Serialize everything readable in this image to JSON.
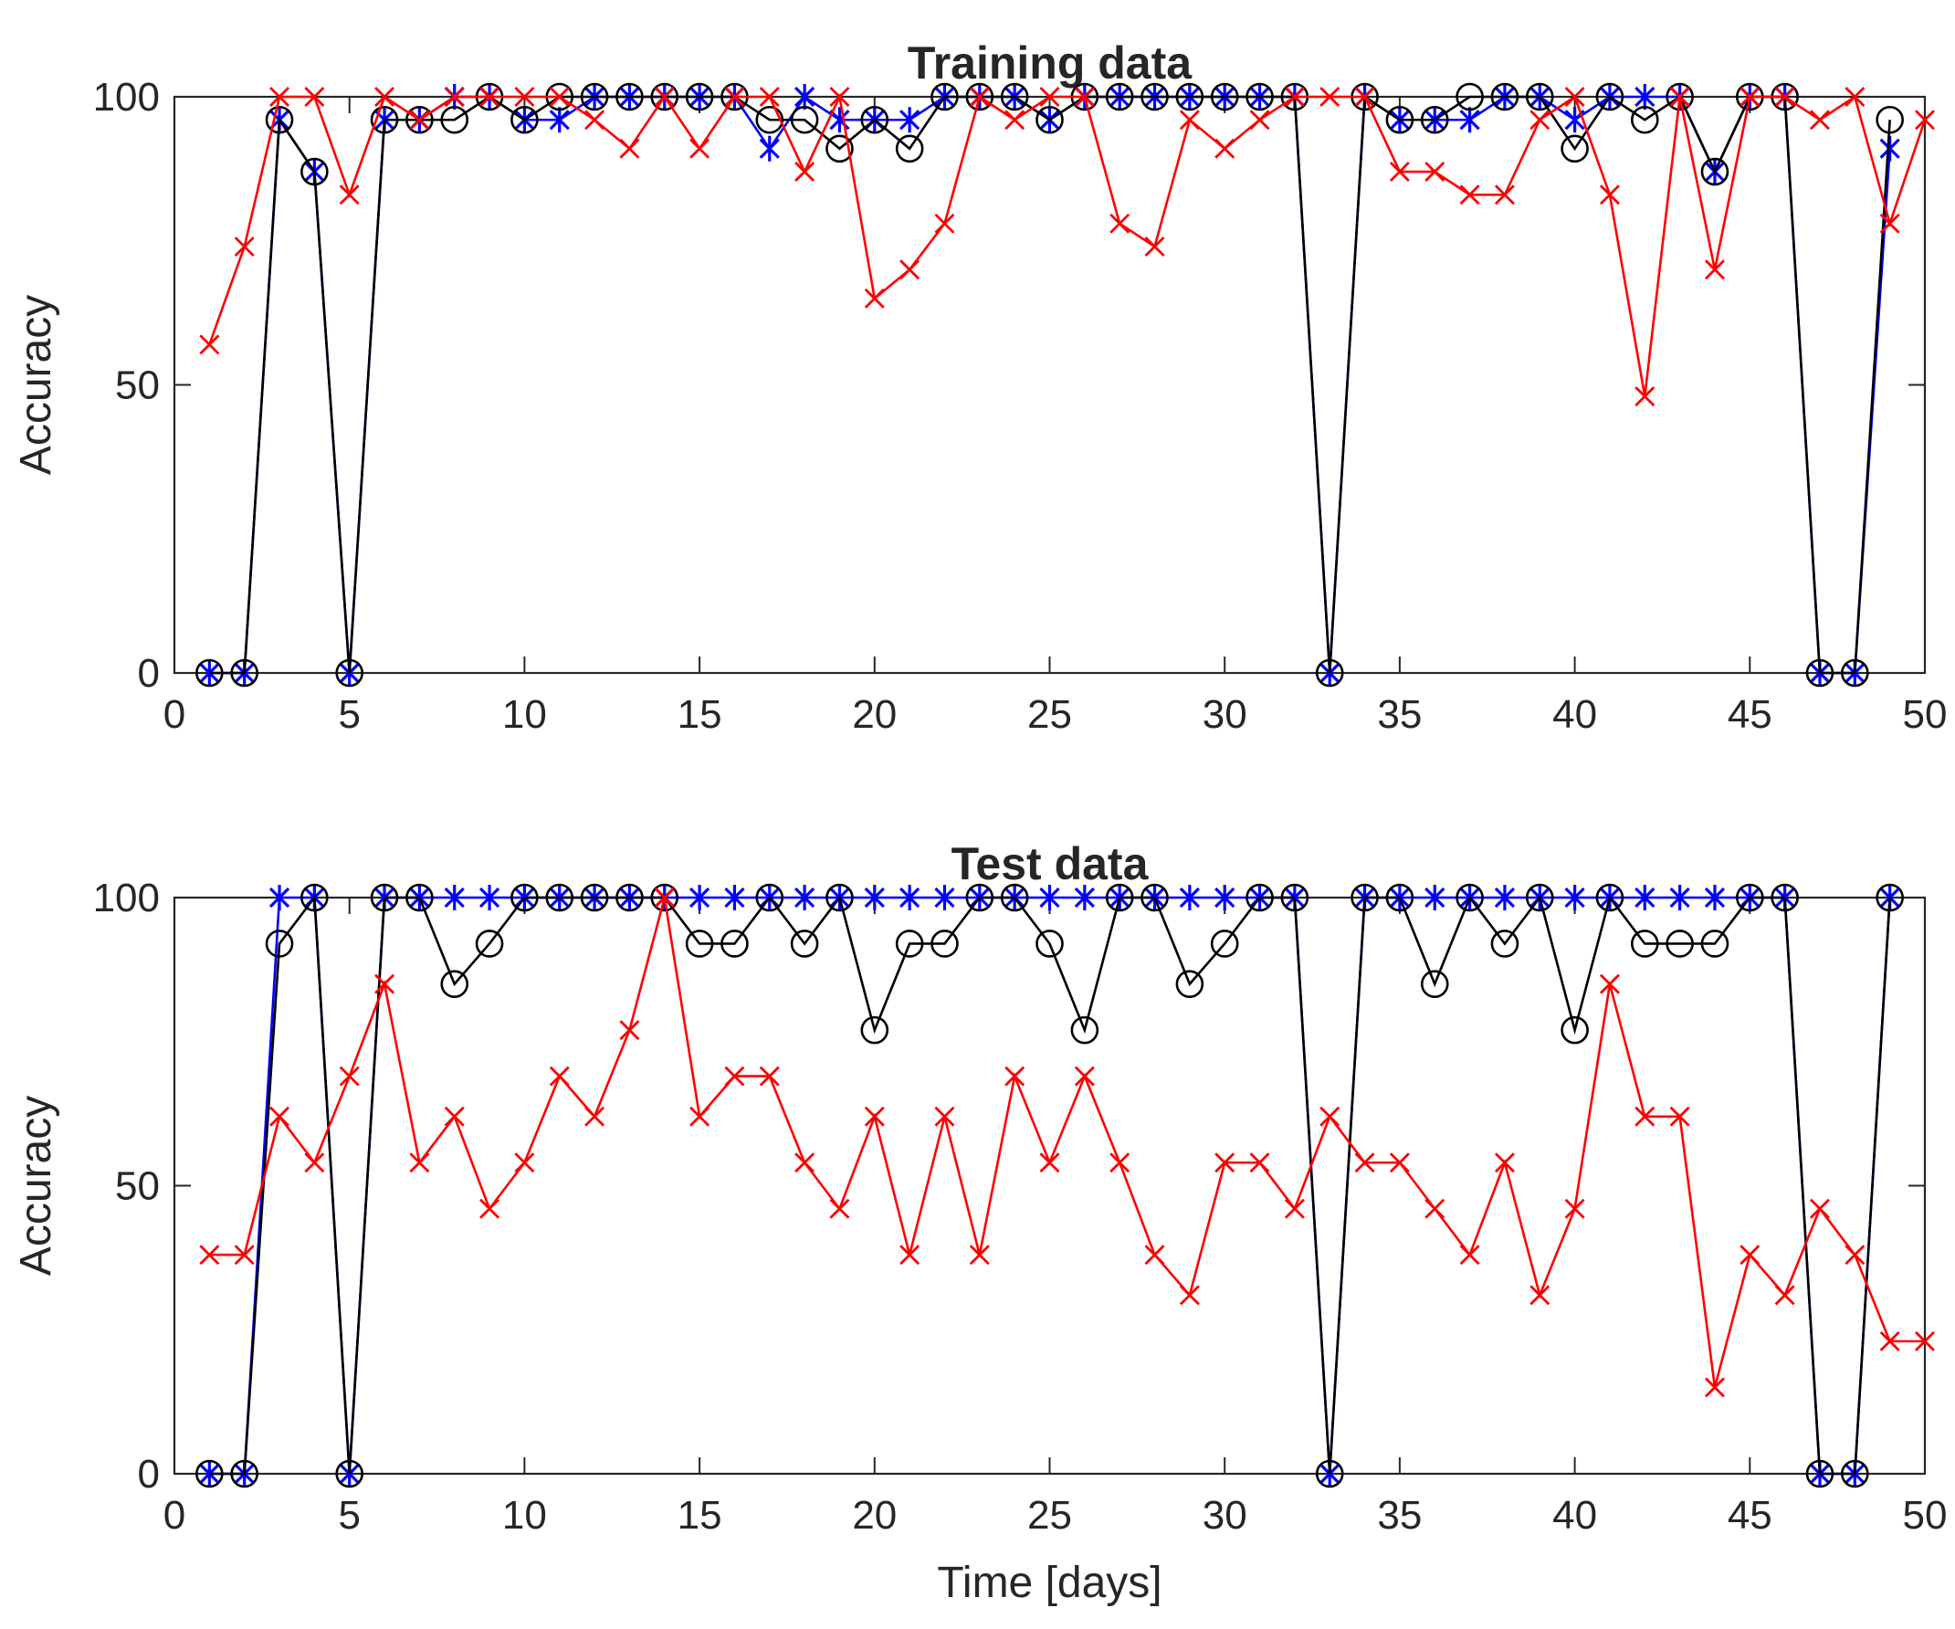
{
  "chart_data": [
    {
      "type": "line",
      "title": "Training data",
      "xlabel": "",
      "ylabel": "Accuracy",
      "xlim": [
        0,
        50
      ],
      "ylim": [
        0,
        100
      ],
      "xticks": [
        0,
        5,
        10,
        15,
        20,
        25,
        30,
        35,
        40,
        45,
        50
      ],
      "yticks": [
        0,
        50,
        100
      ],
      "grid": false,
      "series": [
        {
          "name": "series-blue-asterisk",
          "color": "#0000ff",
          "marker": "asterisk",
          "x": [
            1,
            2,
            3,
            4,
            5,
            6,
            7,
            8,
            9,
            10,
            11,
            12,
            13,
            14,
            15,
            16,
            17,
            18,
            19,
            20,
            21,
            22,
            23,
            24,
            25,
            26,
            27,
            28,
            29,
            30,
            31,
            32,
            33,
            34,
            35,
            36,
            37,
            38,
            39,
            40,
            41,
            42,
            43,
            44,
            45,
            46,
            47,
            48,
            49
          ],
          "values": [
            0,
            0,
            96,
            87,
            0,
            96,
            96,
            100,
            100,
            96,
            96,
            100,
            100,
            100,
            100,
            100,
            91,
            100,
            96,
            96,
            96,
            100,
            100,
            100,
            96,
            100,
            100,
            100,
            100,
            100,
            100,
            100,
            0,
            100,
            96,
            96,
            96,
            100,
            100,
            96,
            100,
            100,
            100,
            87,
            100,
            100,
            0,
            0,
            91
          ]
        },
        {
          "name": "series-black-circle",
          "color": "#000000",
          "marker": "circle",
          "x": [
            1,
            2,
            3,
            4,
            5,
            6,
            7,
            8,
            9,
            10,
            11,
            12,
            13,
            14,
            15,
            16,
            17,
            18,
            19,
            20,
            21,
            22,
            23,
            24,
            25,
            26,
            27,
            28,
            29,
            30,
            31,
            32,
            33,
            34,
            35,
            36,
            37,
            38,
            39,
            40,
            41,
            42,
            43,
            44,
            45,
            46,
            47,
            48,
            49
          ],
          "values": [
            0,
            0,
            96,
            87,
            0,
            96,
            96,
            96,
            100,
            96,
            100,
            100,
            100,
            100,
            100,
            100,
            96,
            96,
            91,
            96,
            91,
            100,
            100,
            100,
            96,
            100,
            100,
            100,
            100,
            100,
            100,
            100,
            0,
            100,
            96,
            96,
            100,
            100,
            100,
            91,
            100,
            96,
            100,
            87,
            100,
            100,
            0,
            0,
            96
          ]
        },
        {
          "name": "series-red-cross",
          "color": "#ff0000",
          "marker": "x",
          "x": [
            1,
            2,
            3,
            4,
            5,
            6,
            7,
            8,
            9,
            10,
            11,
            12,
            13,
            14,
            15,
            16,
            17,
            18,
            19,
            20,
            21,
            22,
            23,
            24,
            25,
            26,
            27,
            28,
            29,
            30,
            31,
            32,
            33,
            34,
            35,
            36,
            37,
            38,
            39,
            40,
            41,
            42,
            43,
            44,
            45,
            46,
            47,
            48,
            49,
            50
          ],
          "values": [
            57,
            74,
            100,
            100,
            83,
            100,
            96,
            100,
            100,
            100,
            100,
            96,
            91,
            100,
            91,
            100,
            100,
            87,
            100,
            65,
            70,
            78,
            100,
            96,
            100,
            100,
            78,
            74,
            96,
            91,
            96,
            100,
            100,
            100,
            87,
            87,
            83,
            83,
            96,
            100,
            83,
            48,
            100,
            70,
            100,
            100,
            96,
            100,
            78,
            96
          ]
        }
      ]
    },
    {
      "type": "line",
      "title": "Test data",
      "xlabel": "Time [days]",
      "ylabel": "Accuracy",
      "xlim": [
        0,
        50
      ],
      "ylim": [
        0,
        100
      ],
      "xticks": [
        0,
        5,
        10,
        15,
        20,
        25,
        30,
        35,
        40,
        45,
        50
      ],
      "yticks": [
        0,
        50,
        100
      ],
      "grid": false,
      "series": [
        {
          "name": "series-blue-asterisk",
          "color": "#0000ff",
          "marker": "asterisk",
          "x": [
            1,
            2,
            3,
            4,
            5,
            6,
            7,
            8,
            9,
            10,
            11,
            12,
            13,
            14,
            15,
            16,
            17,
            18,
            19,
            20,
            21,
            22,
            23,
            24,
            25,
            26,
            27,
            28,
            29,
            30,
            31,
            32,
            33,
            34,
            35,
            36,
            37,
            38,
            39,
            40,
            41,
            42,
            43,
            44,
            45,
            46,
            47,
            48,
            49
          ],
          "values": [
            0,
            0,
            100,
            100,
            0,
            100,
            100,
            100,
            100,
            100,
            100,
            100,
            100,
            100,
            100,
            100,
            100,
            100,
            100,
            100,
            100,
            100,
            100,
            100,
            100,
            100,
            100,
            100,
            100,
            100,
            100,
            100,
            0,
            100,
            100,
            100,
            100,
            100,
            100,
            100,
            100,
            100,
            100,
            100,
            100,
            100,
            0,
            0,
            100
          ]
        },
        {
          "name": "series-black-circle",
          "color": "#000000",
          "marker": "circle",
          "x": [
            1,
            2,
            3,
            4,
            5,
            6,
            7,
            8,
            9,
            10,
            11,
            12,
            13,
            14,
            15,
            16,
            17,
            18,
            19,
            20,
            21,
            22,
            23,
            24,
            25,
            26,
            27,
            28,
            29,
            30,
            31,
            32,
            33,
            34,
            35,
            36,
            37,
            38,
            39,
            40,
            41,
            42,
            43,
            44,
            45,
            46,
            47,
            48,
            49
          ],
          "values": [
            0,
            0,
            92,
            100,
            0,
            100,
            100,
            85,
            92,
            100,
            100,
            100,
            100,
            100,
            92,
            92,
            100,
            92,
            100,
            77,
            92,
            92,
            100,
            100,
            92,
            77,
            100,
            100,
            85,
            92,
            100,
            100,
            0,
            100,
            100,
            85,
            100,
            92,
            100,
            77,
            100,
            92,
            92,
            92,
            100,
            100,
            0,
            0,
            100
          ]
        },
        {
          "name": "series-red-cross",
          "color": "#ff0000",
          "marker": "x",
          "x": [
            1,
            2,
            3,
            4,
            5,
            6,
            7,
            8,
            9,
            10,
            11,
            12,
            13,
            14,
            15,
            16,
            17,
            18,
            19,
            20,
            21,
            22,
            23,
            24,
            25,
            26,
            27,
            28,
            29,
            30,
            31,
            32,
            33,
            34,
            35,
            36,
            37,
            38,
            39,
            40,
            41,
            42,
            43,
            44,
            45,
            46,
            47,
            48,
            49,
            50
          ],
          "values": [
            38,
            38,
            62,
            54,
            69,
            85,
            54,
            62,
            46,
            54,
            69,
            62,
            77,
            100,
            62,
            69,
            69,
            54,
            46,
            62,
            38,
            62,
            38,
            69,
            54,
            69,
            54,
            38,
            31,
            54,
            54,
            46,
            62,
            54,
            54,
            46,
            38,
            54,
            31,
            46,
            85,
            62,
            62,
            15,
            38,
            31,
            46,
            38,
            23,
            23
          ]
        }
      ]
    }
  ]
}
